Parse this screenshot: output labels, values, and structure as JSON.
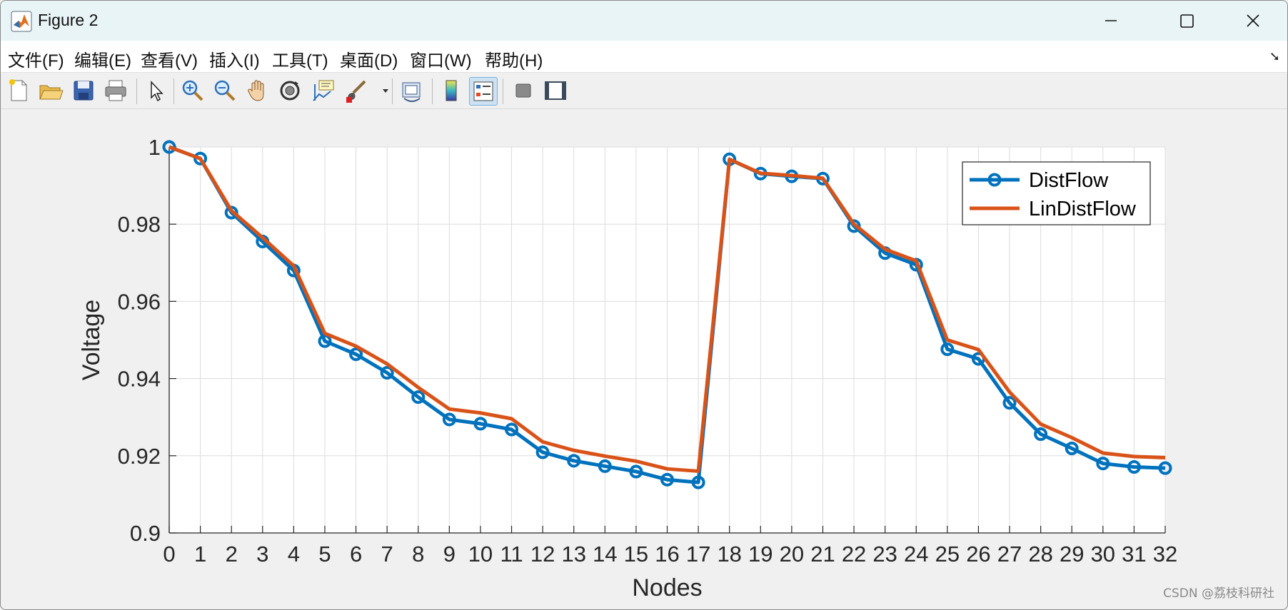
{
  "window": {
    "title": "Figure 2"
  },
  "menu": [
    {
      "label": "文件(F)"
    },
    {
      "label": "编辑(E)"
    },
    {
      "label": "查看(V)"
    },
    {
      "label": "插入(I)"
    },
    {
      "label": "工具(T)"
    },
    {
      "label": "桌面(D)"
    },
    {
      "label": "窗口(W)"
    },
    {
      "label": "帮助(H)"
    }
  ],
  "toolbar": {
    "icons": [
      "new-figure-icon",
      "open-file-icon",
      "save-icon",
      "print-icon",
      "pointer-icon",
      "zoom-in-icon",
      "zoom-out-icon",
      "pan-hand-icon",
      "rotate-3d-icon",
      "data-cursor-icon",
      "brush-icon",
      "link-plot-icon",
      "colorbar-icon",
      "legend-icon",
      "hide-plot-tools-icon",
      "show-plot-tools-icon"
    ]
  },
  "colors": {
    "distflow": "#0072bd",
    "lindistflow": "#d95319",
    "grid": "#dcdcdc",
    "axes_background": "#ffffff"
  },
  "chart_data": {
    "type": "line",
    "title": "",
    "xlabel": "Nodes",
    "ylabel": "Voltage",
    "xlim": [
      0,
      32
    ],
    "ylim": [
      0.9,
      1.0
    ],
    "x": [
      0,
      1,
      2,
      3,
      4,
      5,
      6,
      7,
      8,
      9,
      10,
      11,
      12,
      13,
      14,
      15,
      16,
      17,
      18,
      19,
      20,
      21,
      22,
      23,
      24,
      25,
      26,
      27,
      28,
      29,
      30,
      31,
      32
    ],
    "x_ticks": [
      "0",
      "1",
      "2",
      "3",
      "4",
      "5",
      "6",
      "7",
      "8",
      "9",
      "10",
      "11",
      "12",
      "13",
      "14",
      "15",
      "16",
      "17",
      "18",
      "19",
      "20",
      "21",
      "22",
      "23",
      "24",
      "25",
      "26",
      "27",
      "28",
      "29",
      "30",
      "31",
      "32"
    ],
    "y_ticks": [
      {
        "value": 0.9,
        "label": "0.9"
      },
      {
        "value": 0.92,
        "label": "0.92"
      },
      {
        "value": 0.94,
        "label": "0.94"
      },
      {
        "value": 0.96,
        "label": "0.96"
      },
      {
        "value": 0.98,
        "label": "0.98"
      },
      {
        "value": 1.0,
        "label": "1"
      }
    ],
    "grid": true,
    "legend_position": "top-right",
    "series": [
      {
        "name": "DistFlow",
        "marker": "circle",
        "color": "#0072bd",
        "values": [
          1.0,
          0.997,
          0.983,
          0.9755,
          0.968,
          0.9497,
          0.9463,
          0.9415,
          0.9352,
          0.9294,
          0.9283,
          0.9268,
          0.9209,
          0.9187,
          0.9173,
          0.9159,
          0.9138,
          0.9131,
          0.9968,
          0.9931,
          0.9924,
          0.9918,
          0.9795,
          0.9725,
          0.9695,
          0.9476,
          0.9451,
          0.9337,
          0.9256,
          0.9219,
          0.918,
          0.9171,
          0.9168
        ]
      },
      {
        "name": "LinDistFlow",
        "marker": "none",
        "color": "#d95319",
        "values": [
          1.0,
          0.997,
          0.9835,
          0.9765,
          0.9692,
          0.9517,
          0.9484,
          0.9438,
          0.9377,
          0.9321,
          0.9311,
          0.9296,
          0.9236,
          0.9214,
          0.9199,
          0.9186,
          0.9166,
          0.916,
          0.9968,
          0.9932,
          0.9926,
          0.9919,
          0.98,
          0.9735,
          0.9705,
          0.95,
          0.9475,
          0.9365,
          0.9282,
          0.9247,
          0.9207,
          0.9198,
          0.9195
        ]
      }
    ]
  },
  "watermark": "CSDN @荔枝科研社"
}
